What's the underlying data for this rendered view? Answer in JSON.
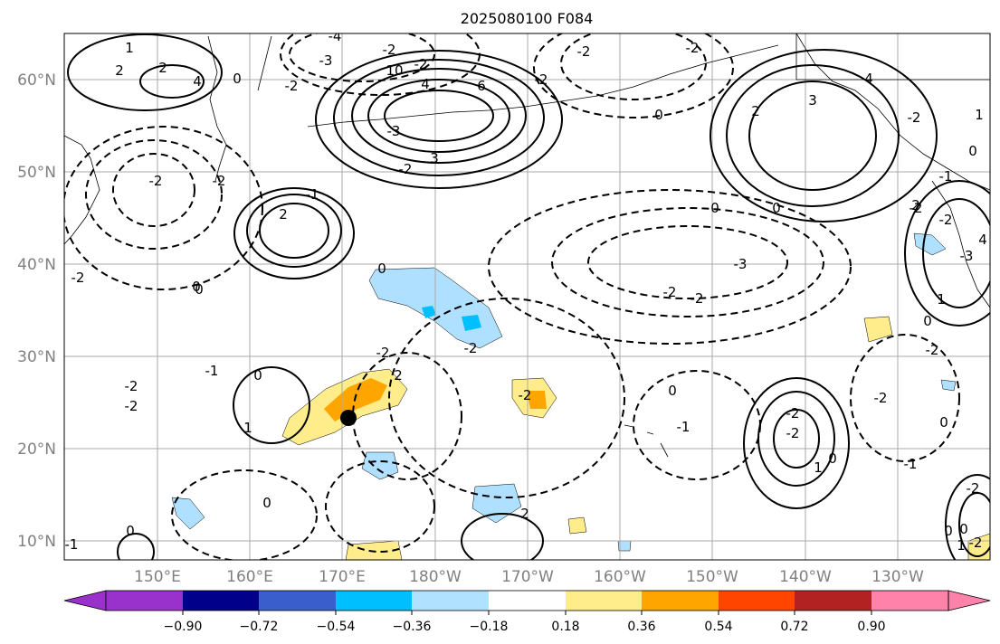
{
  "title": "2025080100 F084",
  "map": {
    "latitude_labels": [
      "60°N",
      "50°N",
      "40°N",
      "30°N",
      "20°N",
      "10°N"
    ],
    "longitude_labels": [
      "150°E",
      "160°E",
      "170°E",
      "180°W",
      "170°W",
      "160°W",
      "150°W",
      "140°W",
      "130°W"
    ],
    "contour_labels": [
      "1",
      "2",
      "2",
      "4",
      "0",
      "-4",
      "-3",
      "-2",
      "-2",
      "10",
      "-2",
      "4",
      "6",
      "-2",
      "0",
      "3",
      "-3",
      "-2",
      "-2",
      "-2",
      "-3",
      "-1",
      "2",
      "2",
      "4",
      "-2",
      "3",
      "-2",
      "0",
      "0",
      "-2",
      "-2",
      "0",
      "-1",
      "-2",
      "-2",
      "4",
      "-3",
      "-2",
      "-2",
      "0",
      "1",
      "-2",
      "-2",
      "-1",
      "-2",
      "2",
      "0",
      "1",
      "-2",
      "0",
      "-2",
      "0",
      "-1",
      "-2",
      "0",
      "-1",
      "-2",
      "-2",
      "1",
      "0",
      "0",
      "2",
      "0",
      "-1",
      "-2",
      "0",
      "0",
      "1",
      "-2",
      "0",
      "2",
      "1",
      "0",
      "-2"
    ],
    "shading_colors": {
      "negative_light": "#b0e0ff",
      "negative_mid": "#00bfff",
      "positive_light": "#ffec8b",
      "positive_mid": "#ffa500",
      "positive_strong": "#ff4500"
    },
    "storm_marker": "black-dot"
  },
  "colorbar": {
    "ticks": [
      "−0.90",
      "−0.72",
      "−0.54",
      "−0.36",
      "−0.18",
      "0.18",
      "0.36",
      "0.54",
      "0.72",
      "0.90"
    ],
    "colors": [
      "#9932cc",
      "#00008b",
      "#3a5fcd",
      "#00bfff",
      "#b0e2ff",
      "#ffffff",
      "#ffec8b",
      "#ffa500",
      "#ff4500",
      "#b22222",
      "#ff82ab"
    ]
  }
}
